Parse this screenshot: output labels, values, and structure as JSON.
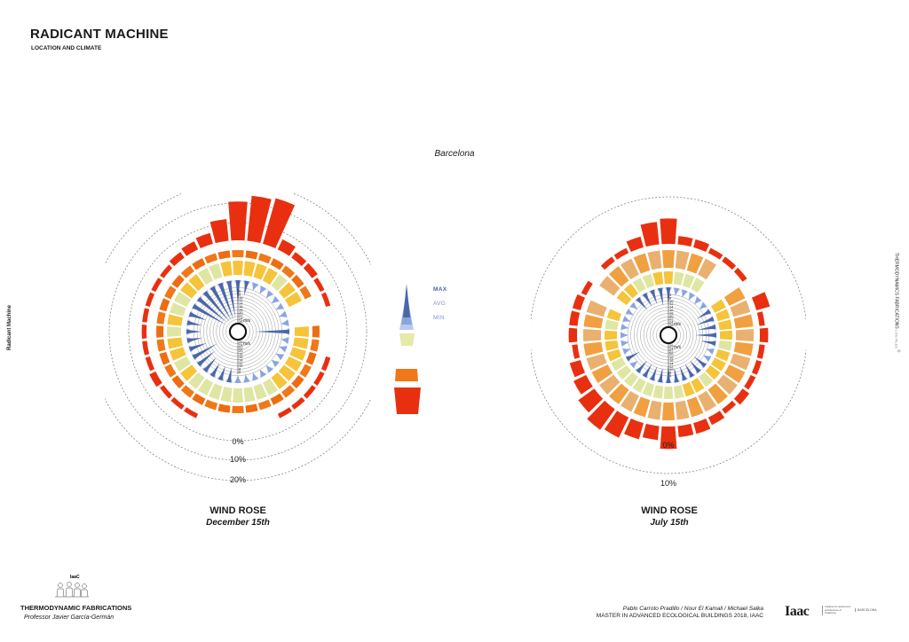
{
  "header": {
    "title": "RADICANT MACHINE",
    "subtitle": "LOCATION AND CLIMATE",
    "city": "Barcelona"
  },
  "side_labels": {
    "left": "Radicant Machine",
    "right_main": "THERMODYNAMICS FABRICATIONS",
    "right_small": "LOG FILES",
    "right_mark": "©"
  },
  "legend": {
    "labels": [
      "MAX",
      "AVG",
      "MIN"
    ],
    "colors": {
      "max": "#4a67a8",
      "avg": "#8aa4dc",
      "min": "#b9c9ee",
      "light": "#e6e9a8",
      "orange": "#f07818",
      "red": "#e83010"
    }
  },
  "footer": {
    "left_title": "THERMODYNAMIC FABRICATIONS",
    "left_professor": "Professor Javier García-Germán",
    "logo_small_text": "IaaC",
    "right_names": "Pablo Carroto Pradillo / Nour El Kamali / Michael Salka",
    "right_master": "MASTER IN ADVANCED ECOLOGICAL BUILDINGS 2018, IAAC",
    "iaac_logo": "Iaac",
    "iaac_desc": "Institute for advanced architecture of Catalonia",
    "iaac_city": "BARCELONA"
  },
  "chart_data": [
    {
      "type": "wind-rose",
      "title": "WIND ROSE",
      "subtitle": "December 15th",
      "speed_unit": "m/s",
      "speed_ticks": [
        5,
        8,
        10,
        12,
        14,
        16,
        18,
        20,
        22,
        24,
        26
      ],
      "frequency_rings": [
        "0%",
        "10%",
        "20%"
      ],
      "directions": 36,
      "frequency_pct": [
        17,
        20,
        21,
        4,
        2,
        2,
        1,
        1,
        0,
        0,
        0,
        1,
        1,
        1,
        1,
        1,
        0,
        0,
        0,
        0,
        0,
        1,
        1,
        1,
        2,
        1,
        1,
        1,
        1,
        1,
        1,
        1,
        2,
        3,
        4,
        9
      ],
      "wind_speed_max": [
        6,
        3,
        2,
        2,
        1,
        1,
        1,
        1,
        0,
        9,
        1,
        1,
        1,
        1,
        1,
        1,
        2,
        2,
        2,
        3,
        3,
        3,
        4,
        5,
        7,
        4,
        3,
        3,
        3,
        4,
        10,
        10,
        11,
        12,
        11,
        10
      ],
      "temperature_band": [
        "mid",
        "mid",
        "mid",
        "mid",
        "light",
        "mid",
        "mid",
        "gap",
        "gap",
        "mid",
        "mid",
        "mid",
        "mid",
        "mid",
        "mid",
        "light",
        "light",
        "light",
        "light",
        "light",
        "light",
        "light",
        "light",
        "mid",
        "light",
        "mid",
        "mid",
        "light",
        "mid",
        "light",
        "light",
        "mid",
        "mid",
        "light",
        "light",
        "mid"
      ],
      "humidity_band": "orange",
      "legend_layers": [
        "MAX",
        "AVG",
        "MIN"
      ]
    },
    {
      "type": "wind-rose",
      "title": "WIND ROSE",
      "subtitle": "July 15th",
      "speed_unit": "m/s",
      "speed_ticks": [
        5,
        8,
        10,
        12,
        14,
        16,
        18,
        20,
        22,
        24,
        26
      ],
      "frequency_rings": [
        "0%",
        "10%"
      ],
      "directions": 36,
      "frequency_pct": [
        8,
        2,
        2,
        1,
        1,
        1,
        0,
        4,
        1,
        2,
        1,
        1,
        1,
        2,
        1,
        2,
        3,
        3,
        7,
        4,
        5,
        7,
        8,
        6,
        4,
        3,
        1,
        2,
        2,
        2,
        1,
        0,
        1,
        1,
        3,
        7
      ],
      "wind_speed_max": [
        4,
        2,
        2,
        1,
        1,
        2,
        3,
        4,
        4,
        5,
        3,
        2,
        2,
        3,
        3,
        3,
        3,
        3,
        4,
        3,
        3,
        3,
        3,
        2,
        3,
        2,
        1,
        1,
        1,
        1,
        2,
        2,
        3,
        3,
        3,
        4
      ],
      "temperature_band": [
        "mid",
        "light",
        "light",
        "light",
        "gap",
        "gap",
        "mid",
        "mid",
        "mid",
        "mid",
        "light",
        "mid",
        "mid",
        "mid",
        "light",
        "mid",
        "mid",
        "light",
        "light",
        "light",
        "light",
        "light",
        "light",
        "light",
        "light",
        "mid",
        "mid",
        "mid",
        "light",
        "mid",
        "gap",
        "mid",
        "mid",
        "light",
        "light",
        "mid"
      ],
      "humidity_band": "peach",
      "legend_layers": [
        "MAX",
        "AVG",
        "MIN"
      ]
    }
  ]
}
